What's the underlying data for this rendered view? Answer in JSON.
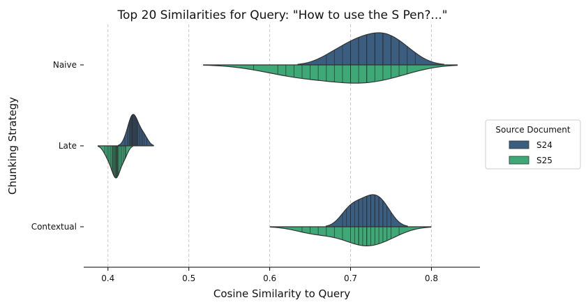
{
  "chart_data": {
    "type": "violin",
    "orientation": "horizontal",
    "split": true,
    "inner": "stick",
    "title": "Top 20 Similarities for Query: \"How to use the S Pen?...\"",
    "xlabel": "Cosine Similarity to Query",
    "ylabel": "Chunking Strategy",
    "xlim": [
      0.37,
      0.86
    ],
    "xticks": [
      0.4,
      0.5,
      0.6,
      0.7,
      0.8
    ],
    "xtick_labels": [
      "0.4",
      "0.5",
      "0.6",
      "0.7",
      "0.8"
    ],
    "grid": "x-dashed",
    "categories": [
      "Naive",
      "Late",
      "Contextual"
    ],
    "legend": {
      "title": "Source Document",
      "position": "center-right",
      "entries": [
        "S24",
        "S25"
      ]
    },
    "series": [
      {
        "name": "S24",
        "color": "#3b5d7f",
        "side": "upper",
        "groups": [
          {
            "category": "Naive",
            "values": [
              0.7,
              0.71,
              0.72,
              0.73,
              0.74,
              0.74,
              0.75,
              0.76,
              0.77,
              0.67,
              0.68,
              0.69,
              0.72,
              0.73,
              0.75,
              0.78,
              0.7,
              0.71,
              0.76,
              0.74
            ]
          },
          {
            "category": "Late",
            "values": [
              0.421,
              0.424,
              0.426,
              0.428,
              0.429,
              0.43,
              0.431,
              0.432,
              0.433,
              0.435,
              0.437,
              0.439,
              0.441,
              0.443,
              0.445,
              0.448,
              0.427,
              0.43,
              0.434,
              0.436
            ]
          },
          {
            "category": "Contextual",
            "values": [
              0.7,
              0.705,
              0.71,
              0.715,
              0.72,
              0.725,
              0.73,
              0.735,
              0.74,
              0.745,
              0.69,
              0.695,
              0.71,
              0.72,
              0.73,
              0.74,
              0.7,
              0.725,
              0.735,
              0.75
            ]
          }
        ]
      },
      {
        "name": "S25",
        "color": "#3fa877",
        "side": "lower",
        "groups": [
          {
            "category": "Naive",
            "values": [
              0.58,
              0.61,
              0.62,
              0.63,
              0.64,
              0.65,
              0.66,
              0.67,
              0.68,
              0.69,
              0.7,
              0.71,
              0.72,
              0.73,
              0.74,
              0.75,
              0.76,
              0.77,
              0.7,
              0.72
            ]
          },
          {
            "category": "Late",
            "values": [
              0.396,
              0.399,
              0.401,
              0.403,
              0.405,
              0.406,
              0.407,
              0.408,
              0.409,
              0.41,
              0.411,
              0.412,
              0.413,
              0.415,
              0.417,
              0.419,
              0.421,
              0.422,
              0.41,
              0.412
            ]
          },
          {
            "category": "Contextual",
            "values": [
              0.64,
              0.65,
              0.66,
              0.67,
              0.68,
              0.69,
              0.7,
              0.705,
              0.71,
              0.715,
              0.72,
              0.725,
              0.73,
              0.735,
              0.74,
              0.745,
              0.75,
              0.76,
              0.71,
              0.72
            ]
          }
        ]
      }
    ]
  }
}
